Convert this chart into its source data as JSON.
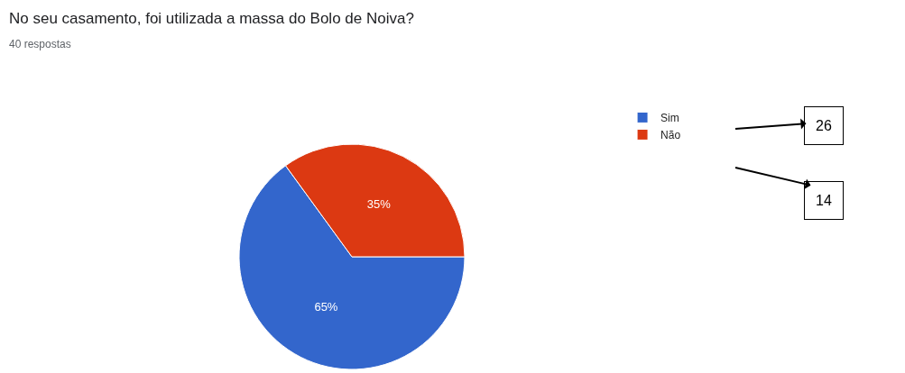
{
  "chart_data": {
    "type": "pie",
    "title": "No seu casamento, foi utilizada a massa do Bolo de Noiva?",
    "subtitle": "40 respostas",
    "categories": [
      "Sim",
      "Não"
    ],
    "values": [
      65,
      35
    ],
    "value_labels": [
      "65%",
      "35%"
    ],
    "colors": [
      "#3366cc",
      "#dc3912"
    ],
    "legend": "right",
    "annotations": [
      "26",
      "14"
    ]
  }
}
